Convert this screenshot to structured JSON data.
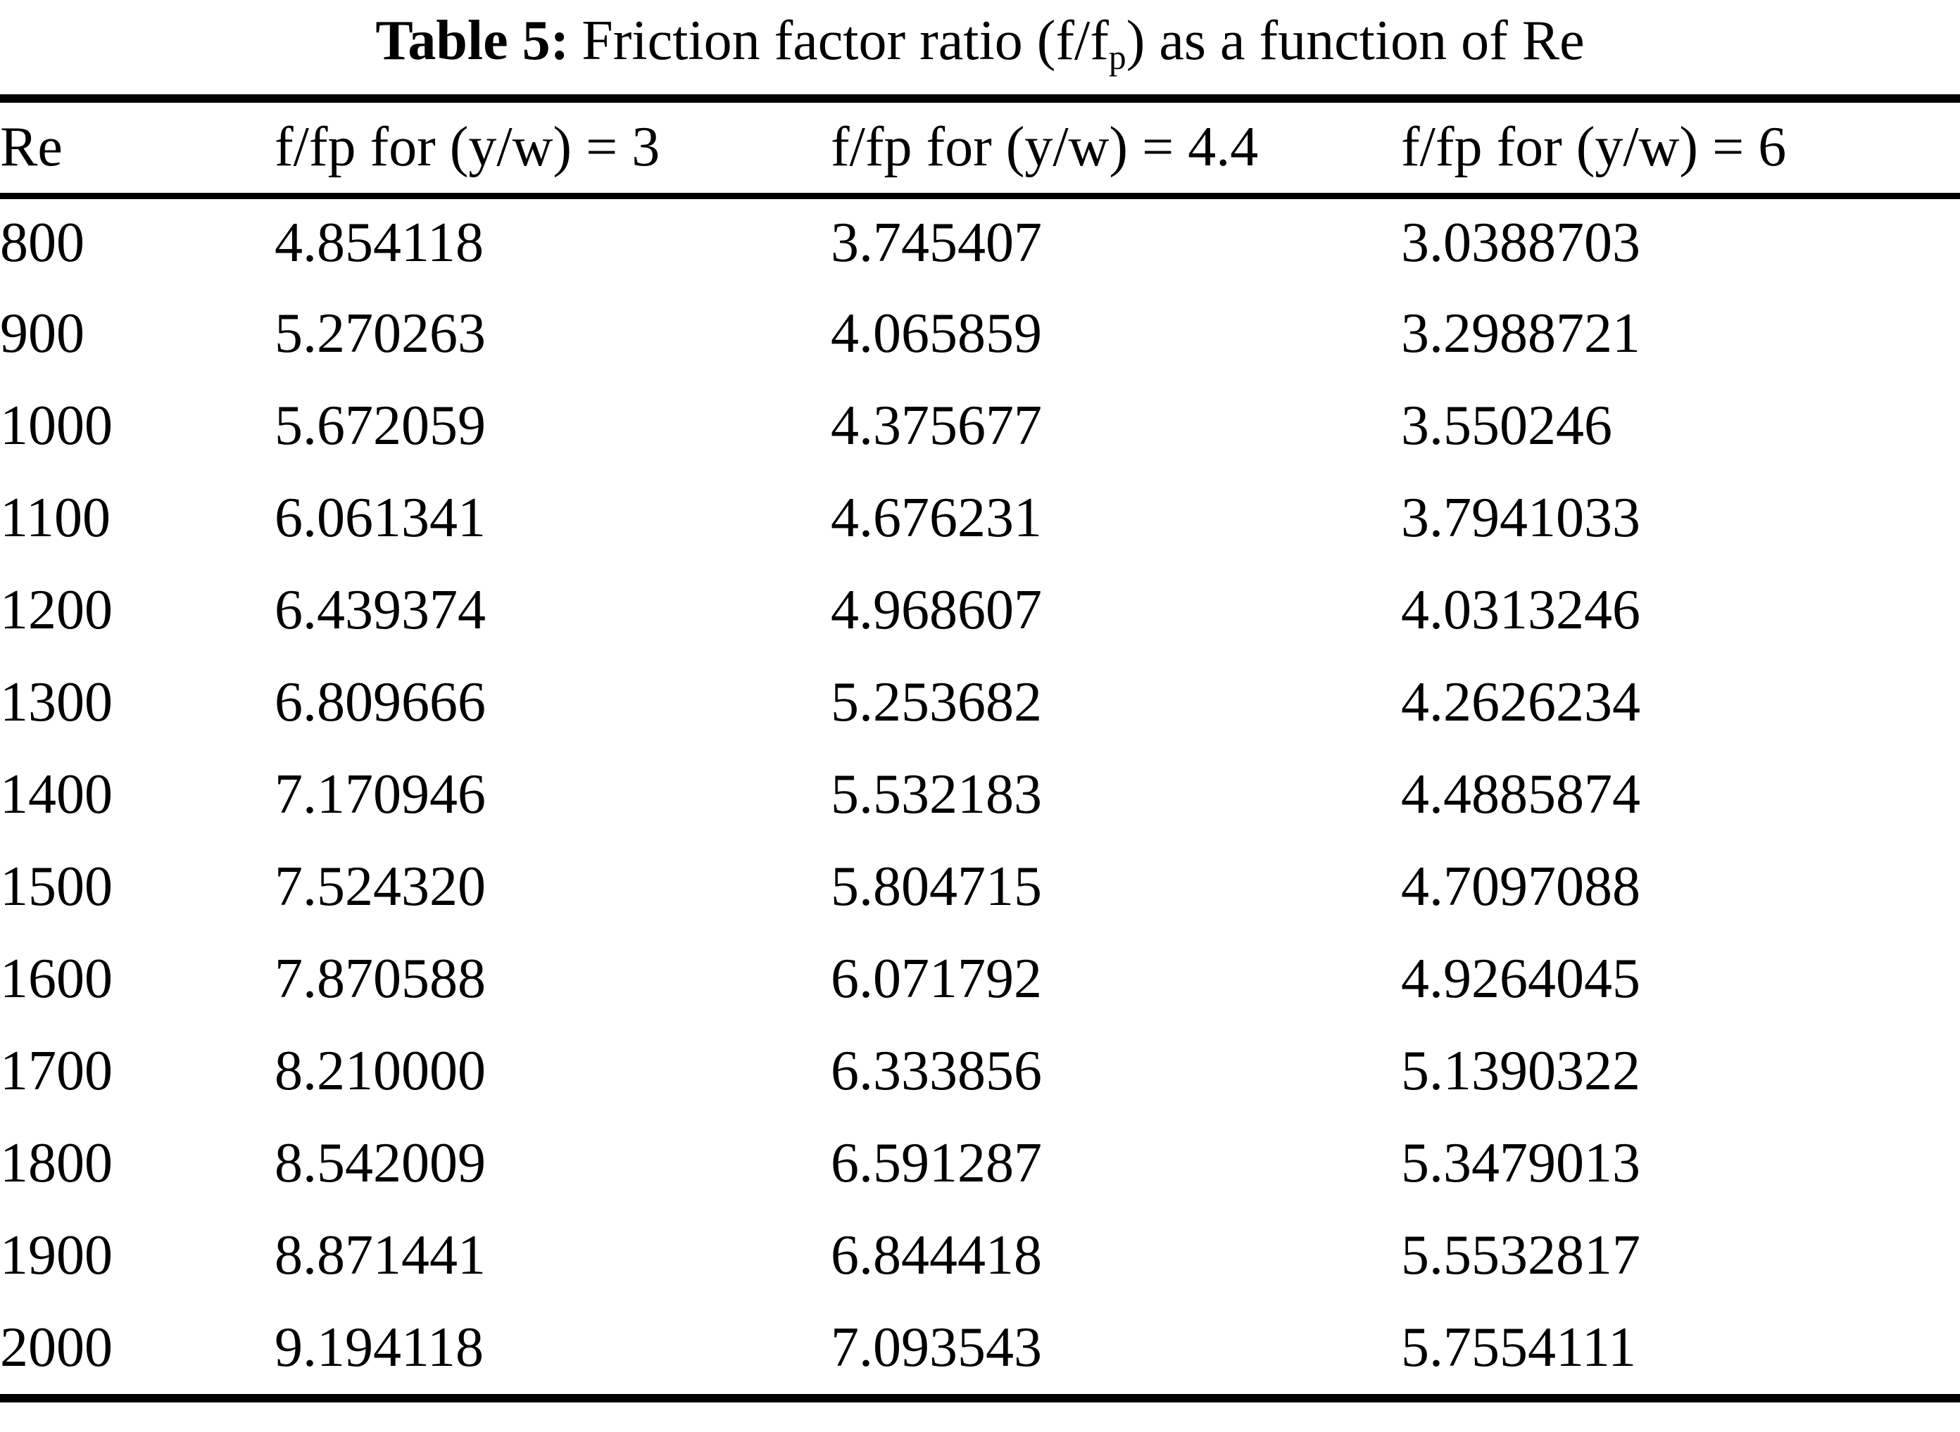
{
  "page": {
    "title": {
      "label": "Table 5:",
      "pre": "Friction factor ratio (f/f",
      "sub": "p",
      "post": ") as a function of Re"
    }
  },
  "table": {
    "columns": [
      "Re",
      "f/fp for (y/w) = 3",
      "f/fp for (y/w) = 4.4",
      "f/fp for (y/w) = 6"
    ],
    "rows": [
      [
        "800",
        "4.854118",
        "3.745407",
        "3.0388703"
      ],
      [
        "900",
        "5.270263",
        "4.065859",
        "3.2988721"
      ],
      [
        "1000",
        "5.672059",
        "4.375677",
        "3.550246"
      ],
      [
        "1100",
        "6.061341",
        "4.676231",
        "3.7941033"
      ],
      [
        "1200",
        "6.439374",
        "4.968607",
        "4.0313246"
      ],
      [
        "1300",
        "6.809666",
        "5.253682",
        "4.2626234"
      ],
      [
        "1400",
        "7.170946",
        "5.532183",
        "4.4885874"
      ],
      [
        "1500",
        "7.524320",
        "5.804715",
        "4.7097088"
      ],
      [
        "1600",
        "7.870588",
        "6.071792",
        "4.9264045"
      ],
      [
        "1700",
        "8.210000",
        "6.333856",
        "5.1390322"
      ],
      [
        "1800",
        "8.542009",
        "6.591287",
        "5.3479013"
      ],
      [
        "1900",
        "8.871441",
        "6.844418",
        "5.5532817"
      ],
      [
        "2000",
        "9.194118",
        "7.093543",
        "5.7554111"
      ]
    ]
  }
}
